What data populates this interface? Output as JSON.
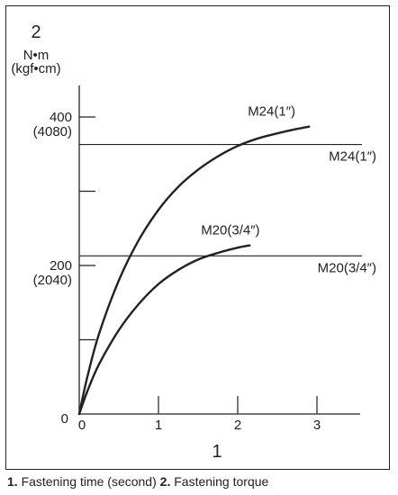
{
  "chart_data": {
    "type": "line",
    "y_axis_number": "2",
    "y_unit_primary": "N•m",
    "y_unit_secondary": "(kgf•cm)",
    "x_axis_number": "1",
    "xlim": [
      0,
      3.5
    ],
    "ylim": [
      0,
      400
    ],
    "x_ticks": [
      {
        "value": 0,
        "label": "0"
      },
      {
        "value": 1,
        "label": "1"
      },
      {
        "value": 2,
        "label": "2"
      },
      {
        "value": 3,
        "label": "3"
      }
    ],
    "y_ticks": [
      {
        "value": 0,
        "label": "0",
        "sublabel": ""
      },
      {
        "value": 100,
        "label": "",
        "sublabel": ""
      },
      {
        "value": 200,
        "label": "200",
        "sublabel": "(2040)"
      },
      {
        "value": 300,
        "label": "",
        "sublabel": ""
      },
      {
        "value": 400,
        "label": "400",
        "sublabel": "(4080)"
      }
    ],
    "reference_lines": [
      {
        "label": "M24(1″)",
        "y": 363
      },
      {
        "label": "M20(3/4″)",
        "y": 213
      }
    ],
    "series": [
      {
        "name": "M24(1″)",
        "x": [
          0,
          0.1,
          0.25,
          0.5,
          0.75,
          1.0,
          1.25,
          1.5,
          1.75,
          2.0,
          2.25,
          2.5,
          2.75,
          2.9
        ],
        "y": [
          0,
          49,
          108,
          180,
          234,
          275,
          306,
          329,
          347,
          361,
          371,
          378,
          384,
          387
        ]
      },
      {
        "name": "M20(3/4″)",
        "x": [
          0,
          0.1,
          0.25,
          0.5,
          0.75,
          1.0,
          1.25,
          1.5,
          1.75,
          2.0,
          2.15
        ],
        "y": [
          0,
          30,
          67,
          113,
          148,
          175,
          194,
          208,
          217,
          224,
          227
        ]
      }
    ]
  },
  "caption": {
    "n1": "1.",
    "t1": " Fastening time (second) ",
    "n2": "2.",
    "t2": " Fastening torque"
  }
}
